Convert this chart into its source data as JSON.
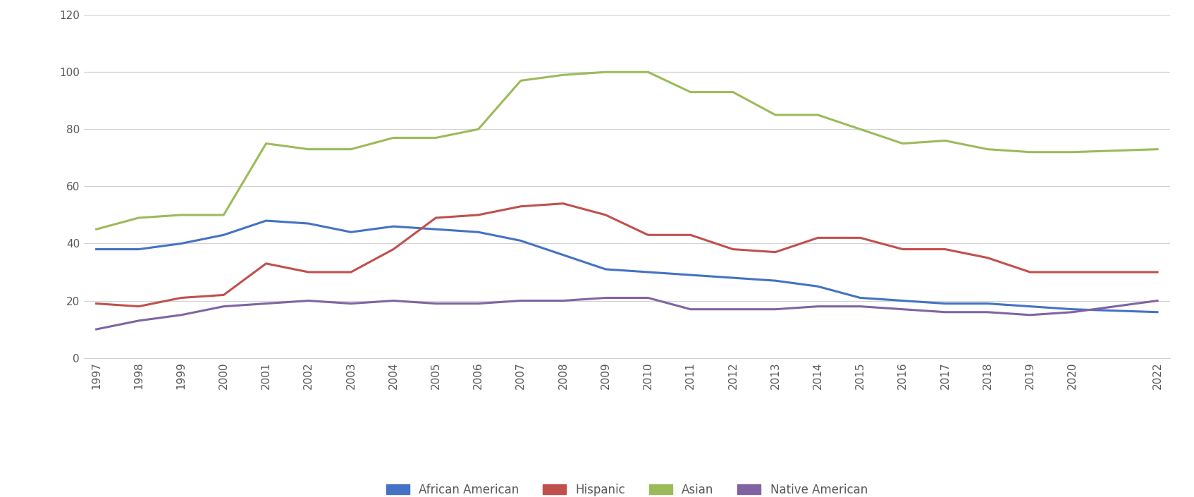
{
  "years": [
    1997,
    1998,
    1999,
    2000,
    2001,
    2002,
    2003,
    2004,
    2005,
    2006,
    2007,
    2008,
    2009,
    2010,
    2011,
    2012,
    2013,
    2014,
    2015,
    2016,
    2017,
    2018,
    2019,
    2020,
    2022
  ],
  "african_american": [
    38,
    38,
    40,
    43,
    48,
    47,
    44,
    46,
    45,
    44,
    41,
    36,
    31,
    30,
    29,
    28,
    27,
    25,
    21,
    20,
    19,
    19,
    18,
    17,
    16
  ],
  "hispanic": [
    19,
    18,
    21,
    22,
    33,
    30,
    30,
    38,
    49,
    50,
    53,
    54,
    50,
    43,
    43,
    38,
    37,
    42,
    42,
    38,
    38,
    35,
    30,
    30,
    30
  ],
  "asian": [
    45,
    49,
    50,
    50,
    75,
    73,
    73,
    77,
    77,
    80,
    97,
    99,
    100,
    100,
    93,
    93,
    85,
    85,
    80,
    75,
    76,
    73,
    72,
    72,
    73
  ],
  "native_american": [
    10,
    13,
    15,
    18,
    19,
    20,
    19,
    20,
    19,
    19,
    20,
    20,
    21,
    21,
    17,
    17,
    17,
    18,
    18,
    17,
    16,
    16,
    15,
    16,
    20
  ],
  "colors": {
    "african_american": "#4472C4",
    "hispanic": "#C0504D",
    "asian": "#9BBB59",
    "native_american": "#8064A2"
  },
  "legend_labels": [
    "African American",
    "Hispanic",
    "Asian",
    "Native American"
  ],
  "ylim": [
    0,
    120
  ],
  "yticks": [
    0,
    20,
    40,
    60,
    80,
    100,
    120
  ],
  "background_color": "#ffffff",
  "grid_color": "#d3d3d3",
  "line_width": 2.2
}
